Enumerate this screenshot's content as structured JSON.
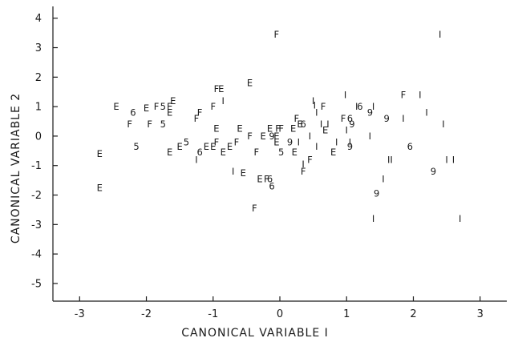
{
  "chart_data": {
    "type": "scatter",
    "title": "",
    "xlabel": "CANONICAL  VARIABLE  I",
    "ylabel": "CANONICAL  VARIABLE  2",
    "xlim": [
      -3.4,
      3.4
    ],
    "ylim": [
      -5.6,
      4.4
    ],
    "xticks": [
      -3,
      -2,
      -1,
      0,
      1,
      2,
      3
    ],
    "yticks": [
      -5,
      -4,
      -3,
      -2,
      -1,
      0,
      1,
      2,
      3,
      4
    ],
    "grid": false,
    "points": [
      {
        "x": -2.7,
        "y": -0.6,
        "label": "E"
      },
      {
        "x": -2.7,
        "y": -1.75,
        "label": "E"
      },
      {
        "x": -2.45,
        "y": 1.0,
        "label": "E"
      },
      {
        "x": -2.25,
        "y": 0.4,
        "label": "F"
      },
      {
        "x": -2.2,
        "y": 0.8,
        "label": "6"
      },
      {
        "x": -2.15,
        "y": -0.35,
        "label": "5"
      },
      {
        "x": -2.0,
        "y": 0.95,
        "label": "E"
      },
      {
        "x": -1.95,
        "y": 0.4,
        "label": "F"
      },
      {
        "x": -1.85,
        "y": 1.0,
        "label": "F"
      },
      {
        "x": -1.75,
        "y": 1.0,
        "label": "5"
      },
      {
        "x": -1.75,
        "y": 0.4,
        "label": "5"
      },
      {
        "x": -1.65,
        "y": 1.0,
        "label": "E"
      },
      {
        "x": -1.6,
        "y": 1.2,
        "label": "E"
      },
      {
        "x": -1.65,
        "y": 0.8,
        "label": "E"
      },
      {
        "x": -1.65,
        "y": -0.55,
        "label": "E"
      },
      {
        "x": -1.5,
        "y": -0.35,
        "label": "E"
      },
      {
        "x": -1.4,
        "y": -0.2,
        "label": "5"
      },
      {
        "x": -1.25,
        "y": 0.6,
        "label": "F"
      },
      {
        "x": -1.2,
        "y": 0.8,
        "label": "F"
      },
      {
        "x": -1.25,
        "y": -0.8,
        "label": "I"
      },
      {
        "x": -1.2,
        "y": -0.55,
        "label": "6"
      },
      {
        "x": -1.1,
        "y": -0.35,
        "label": "E"
      },
      {
        "x": -1.0,
        "y": -0.35,
        "label": "E"
      },
      {
        "x": -0.95,
        "y": -0.2,
        "label": "F"
      },
      {
        "x": -0.95,
        "y": 0.25,
        "label": "E"
      },
      {
        "x": -1.0,
        "y": 1.0,
        "label": "F"
      },
      {
        "x": -0.95,
        "y": 1.6,
        "label": "F"
      },
      {
        "x": -0.88,
        "y": 1.6,
        "label": "E"
      },
      {
        "x": -0.85,
        "y": 1.2,
        "label": "I"
      },
      {
        "x": -0.85,
        "y": -0.55,
        "label": "E"
      },
      {
        "x": -0.75,
        "y": -0.35,
        "label": "E"
      },
      {
        "x": -0.7,
        "y": -1.2,
        "label": "I"
      },
      {
        "x": -0.6,
        "y": 0.25,
        "label": "E"
      },
      {
        "x": -0.65,
        "y": -0.2,
        "label": "F"
      },
      {
        "x": -0.55,
        "y": -1.25,
        "label": "E"
      },
      {
        "x": -0.45,
        "y": 1.8,
        "label": "E"
      },
      {
        "x": -0.45,
        "y": 0.0,
        "label": "F"
      },
      {
        "x": -0.35,
        "y": -0.55,
        "label": "F"
      },
      {
        "x": -0.38,
        "y": -2.45,
        "label": "F"
      },
      {
        "x": -0.25,
        "y": 0.0,
        "label": "E"
      },
      {
        "x": -0.3,
        "y": -1.45,
        "label": "E"
      },
      {
        "x": -0.15,
        "y": 0.25,
        "label": "E"
      },
      {
        "x": -0.2,
        "y": -1.45,
        "label": "F"
      },
      {
        "x": -0.15,
        "y": -1.45,
        "label": "6"
      },
      {
        "x": -0.12,
        "y": -1.7,
        "label": "6"
      },
      {
        "x": -0.12,
        "y": 0.0,
        "label": "9"
      },
      {
        "x": -0.05,
        "y": 0.0,
        "label": "E"
      },
      {
        "x": -0.05,
        "y": 3.45,
        "label": "F"
      },
      {
        "x": -0.03,
        "y": 0.25,
        "label": "F"
      },
      {
        "x": -0.05,
        "y": -0.2,
        "label": "E"
      },
      {
        "x": 0.02,
        "y": 0.25,
        "label": "F"
      },
      {
        "x": 0.02,
        "y": -0.55,
        "label": "5"
      },
      {
        "x": 0.15,
        "y": -0.2,
        "label": "9"
      },
      {
        "x": 0.2,
        "y": 0.25,
        "label": "E"
      },
      {
        "x": 0.22,
        "y": -0.55,
        "label": "E"
      },
      {
        "x": 0.25,
        "y": 0.6,
        "label": "F"
      },
      {
        "x": 0.3,
        "y": 0.4,
        "label": "E"
      },
      {
        "x": 0.35,
        "y": 0.4,
        "label": "6"
      },
      {
        "x": 0.28,
        "y": -0.2,
        "label": "I"
      },
      {
        "x": 0.35,
        "y": -0.95,
        "label": "I"
      },
      {
        "x": 0.35,
        "y": -1.2,
        "label": "F"
      },
      {
        "x": 0.45,
        "y": 0.0,
        "label": "I"
      },
      {
        "x": 0.45,
        "y": -0.8,
        "label": "F"
      },
      {
        "x": 0.5,
        "y": 1.2,
        "label": "I"
      },
      {
        "x": 0.52,
        "y": 1.05,
        "label": "I"
      },
      {
        "x": 0.55,
        "y": 0.8,
        "label": "I"
      },
      {
        "x": 0.55,
        "y": -0.35,
        "label": "I"
      },
      {
        "x": 0.62,
        "y": 0.4,
        "label": "I"
      },
      {
        "x": 0.65,
        "y": 1.0,
        "label": "F"
      },
      {
        "x": 0.68,
        "y": 0.2,
        "label": "E"
      },
      {
        "x": 0.72,
        "y": 0.4,
        "label": "I"
      },
      {
        "x": 0.8,
        "y": -0.55,
        "label": "E"
      },
      {
        "x": 0.85,
        "y": -0.2,
        "label": "I"
      },
      {
        "x": 0.95,
        "y": 0.6,
        "label": "F"
      },
      {
        "x": 0.98,
        "y": 1.4,
        "label": "I"
      },
      {
        "x": 1.0,
        "y": 0.2,
        "label": "I"
      },
      {
        "x": 1.05,
        "y": 0.6,
        "label": "6"
      },
      {
        "x": 1.08,
        "y": 0.4,
        "label": "9"
      },
      {
        "x": 1.05,
        "y": -0.2,
        "label": "I"
      },
      {
        "x": 1.05,
        "y": -0.35,
        "label": "9"
      },
      {
        "x": 1.15,
        "y": 1.0,
        "label": "I"
      },
      {
        "x": 1.2,
        "y": 1.0,
        "label": "6"
      },
      {
        "x": 1.35,
        "y": 0.8,
        "label": "9"
      },
      {
        "x": 1.4,
        "y": 1.0,
        "label": "I"
      },
      {
        "x": 1.35,
        "y": 0.0,
        "label": "I"
      },
      {
        "x": 1.4,
        "y": -2.8,
        "label": "I"
      },
      {
        "x": 1.45,
        "y": -1.95,
        "label": "9"
      },
      {
        "x": 1.55,
        "y": -1.45,
        "label": "I"
      },
      {
        "x": 1.6,
        "y": 0.6,
        "label": "9"
      },
      {
        "x": 1.65,
        "y": -0.8,
        "label": "II"
      },
      {
        "x": 1.85,
        "y": 1.4,
        "label": "F"
      },
      {
        "x": 1.85,
        "y": 0.6,
        "label": "I"
      },
      {
        "x": 1.95,
        "y": -0.35,
        "label": "6"
      },
      {
        "x": 2.1,
        "y": 1.4,
        "label": "I"
      },
      {
        "x": 2.2,
        "y": 0.8,
        "label": "I"
      },
      {
        "x": 2.3,
        "y": -1.2,
        "label": "9"
      },
      {
        "x": 2.4,
        "y": 3.45,
        "label": "I"
      },
      {
        "x": 2.45,
        "y": 0.4,
        "label": "I"
      },
      {
        "x": 2.5,
        "y": -0.8,
        "label": "I"
      },
      {
        "x": 2.6,
        "y": -0.8,
        "label": "I"
      },
      {
        "x": 2.7,
        "y": -2.8,
        "label": "I"
      }
    ]
  }
}
